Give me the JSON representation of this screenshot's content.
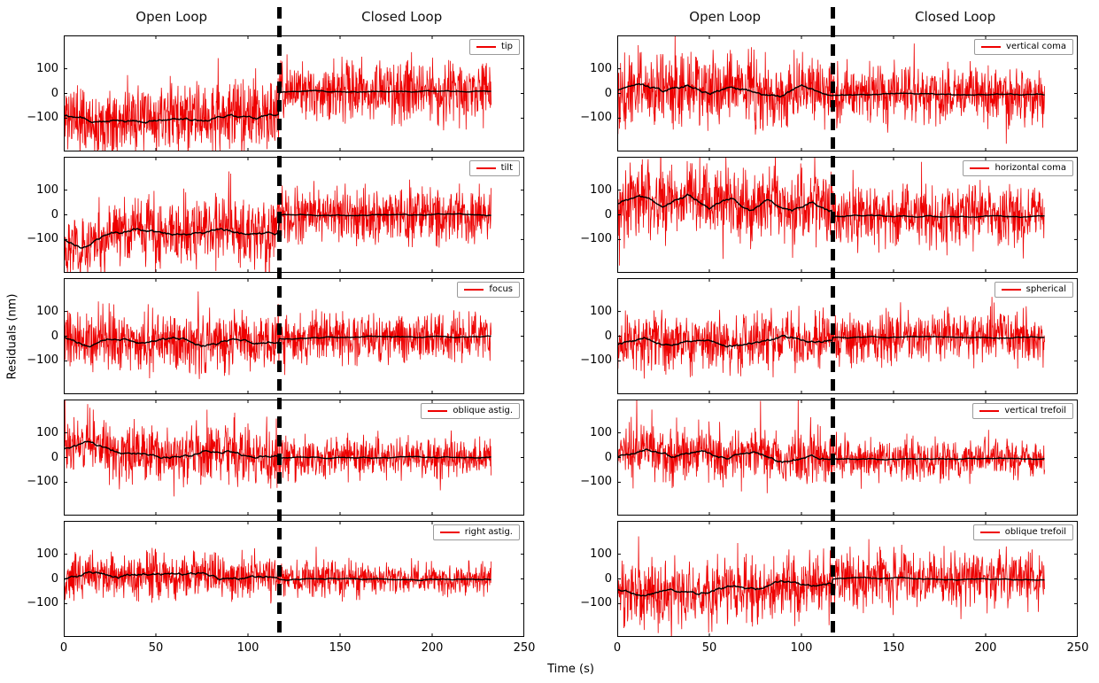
{
  "chart_data": {
    "type": "line",
    "title": "",
    "xlabel": "Time (s)",
    "ylabel": "Residuals (nm)",
    "xlim": [
      0,
      250
    ],
    "x_ticks": [
      "0",
      "50",
      "100",
      "150",
      "200",
      "250"
    ],
    "x_tick_values": [
      0,
      50,
      100,
      150,
      200,
      250
    ],
    "ylim": [
      -235,
      235
    ],
    "y_ticks": [
      "100",
      "0",
      "−100"
    ],
    "y_tick_values": [
      100,
      0,
      -100
    ],
    "grid": false,
    "legend_position": "upper right",
    "phase_labels": {
      "open": "Open Loop",
      "closed": "Closed Loop"
    },
    "transition_time_s": 117,
    "t_end_s": 232,
    "series_color": "#ee0000",
    "mean_color": "#000000",
    "columns": [
      {
        "name": "left",
        "panels": [
          {
            "legend": "tip",
            "seed": 11,
            "open_sigma": 68,
            "closed_sigma": 60,
            "closed_mean": 8,
            "open_mean_anchors": [
              [
                0,
                -85
              ],
              [
                15,
                -110
              ],
              [
                30,
                -95
              ],
              [
                45,
                -115
              ],
              [
                60,
                -95
              ],
              [
                75,
                -100
              ],
              [
                90,
                -85
              ],
              [
                105,
                -100
              ],
              [
                115,
                -80
              ]
            ]
          },
          {
            "legend": "tilt",
            "seed": 22,
            "open_sigma": 65,
            "closed_sigma": 55,
            "closed_mean": 0,
            "open_mean_anchors": [
              [
                0,
                -95
              ],
              [
                10,
                -135
              ],
              [
                25,
                -85
              ],
              [
                40,
                -55
              ],
              [
                55,
                -80
              ],
              [
                70,
                -70
              ],
              [
                85,
                -60
              ],
              [
                100,
                -75
              ],
              [
                115,
                -70
              ]
            ]
          },
          {
            "legend": "focus",
            "seed": 33,
            "open_sigma": 62,
            "closed_sigma": 48,
            "closed_mean": -5,
            "open_mean_anchors": [
              [
                0,
                -5
              ],
              [
                15,
                -35
              ],
              [
                30,
                -10
              ],
              [
                45,
                -30
              ],
              [
                60,
                -15
              ],
              [
                75,
                -35
              ],
              [
                90,
                -10
              ],
              [
                105,
                -25
              ],
              [
                115,
                -15
              ]
            ]
          },
          {
            "legend": "oblique astig.",
            "seed": 44,
            "open_sigma": 60,
            "closed_sigma": 40,
            "closed_mean": 0,
            "open_mean_anchors": [
              [
                0,
                35
              ],
              [
                15,
                60
              ],
              [
                30,
                25
              ],
              [
                45,
                15
              ],
              [
                60,
                5
              ],
              [
                75,
                20
              ],
              [
                90,
                30
              ],
              [
                105,
                0
              ],
              [
                115,
                10
              ]
            ]
          },
          {
            "legend": "right astig.",
            "seed": 55,
            "open_sigma": 45,
            "closed_sigma": 33,
            "closed_mean": 0,
            "open_mean_anchors": [
              [
                0,
                0
              ],
              [
                15,
                30
              ],
              [
                30,
                5
              ],
              [
                45,
                15
              ],
              [
                60,
                10
              ],
              [
                75,
                20
              ],
              [
                90,
                0
              ],
              [
                105,
                10
              ],
              [
                115,
                5
              ]
            ]
          }
        ]
      },
      {
        "name": "right",
        "panels": [
          {
            "legend": "vertical coma",
            "seed": 66,
            "open_sigma": 72,
            "closed_sigma": 55,
            "closed_mean": -5,
            "open_mean_anchors": [
              [
                0,
                10
              ],
              [
                12,
                45
              ],
              [
                25,
                5
              ],
              [
                38,
                30
              ],
              [
                50,
                0
              ],
              [
                62,
                30
              ],
              [
                75,
                10
              ],
              [
                88,
                -10
              ],
              [
                100,
                25
              ],
              [
                115,
                0
              ]
            ]
          },
          {
            "legend": "horizontal coma",
            "seed": 77,
            "open_sigma": 75,
            "closed_sigma": 60,
            "closed_mean": -5,
            "open_mean_anchors": [
              [
                0,
                45
              ],
              [
                12,
                75
              ],
              [
                25,
                35
              ],
              [
                38,
                80
              ],
              [
                50,
                30
              ],
              [
                62,
                65
              ],
              [
                72,
                15
              ],
              [
                82,
                60
              ],
              [
                95,
                20
              ],
              [
                105,
                55
              ],
              [
                115,
                25
              ]
            ]
          },
          {
            "legend": "spherical",
            "seed": 88,
            "open_sigma": 55,
            "closed_sigma": 50,
            "closed_mean": -3,
            "open_mean_anchors": [
              [
                0,
                -35
              ],
              [
                15,
                -10
              ],
              [
                30,
                -30
              ],
              [
                45,
                -15
              ],
              [
                60,
                -35
              ],
              [
                75,
                -20
              ],
              [
                90,
                -5
              ],
              [
                105,
                -25
              ],
              [
                115,
                -15
              ]
            ]
          },
          {
            "legend": "vertical trefoil",
            "seed": 99,
            "open_sigma": 55,
            "closed_sigma": 40,
            "closed_mean": -5,
            "open_mean_anchors": [
              [
                0,
                5
              ],
              [
                15,
                35
              ],
              [
                30,
                0
              ],
              [
                45,
                30
              ],
              [
                60,
                -5
              ],
              [
                75,
                20
              ],
              [
                90,
                -15
              ],
              [
                105,
                10
              ],
              [
                115,
                0
              ]
            ]
          },
          {
            "legend": "oblique trefoil",
            "seed": 111,
            "open_sigma": 62,
            "closed_sigma": 55,
            "closed_mean": 0,
            "open_mean_anchors": [
              [
                0,
                -45
              ],
              [
                15,
                -65
              ],
              [
                30,
                -40
              ],
              [
                45,
                -60
              ],
              [
                60,
                -35
              ],
              [
                75,
                -45
              ],
              [
                90,
                -15
              ],
              [
                105,
                -35
              ],
              [
                115,
                -20
              ]
            ]
          }
        ]
      }
    ]
  }
}
